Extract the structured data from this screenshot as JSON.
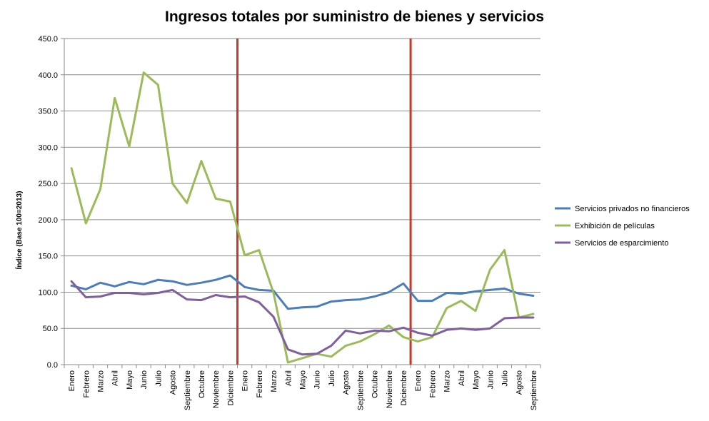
{
  "chart_data": {
    "type": "line",
    "title": "Ingresos totales por suministro de bienes y servicios",
    "xlabel": "",
    "ylabel": "Índice (Base  100=2013)",
    "ylim": [
      0,
      450
    ],
    "yticks": [
      "0.0",
      "50.0",
      "100.0",
      "150.0",
      "200.0",
      "250.0",
      "300.0",
      "350.0",
      "400.0",
      "450.0"
    ],
    "grid": true,
    "legend_position": "right",
    "categories": [
      "Enero",
      "Febrero",
      "Marzo",
      "Abril",
      "Mayo",
      "Junio",
      "Julio",
      "Agosto",
      "Septiembre",
      "Octubre",
      "Noviembre",
      "Diciembre",
      "Enero",
      "Febrero",
      "Marzo",
      "Abril",
      "Mayo",
      "Junio",
      "Julio",
      "Agosto",
      "Septiembre",
      "Octubre",
      "Noviembre",
      "Diciembre",
      "Enero",
      "Febrero",
      "Marzo",
      "Abril",
      "Mayo",
      "Junio",
      "Julio",
      "Agosto",
      "Septiembre"
    ],
    "separators_after_index": [
      11,
      23
    ],
    "separator_color": "#c0392b",
    "series": [
      {
        "name": "Servicios privados no financieros",
        "color": "#4a7ebb",
        "values": [
          109,
          104,
          113,
          108,
          114,
          111,
          117,
          115,
          110,
          113,
          117,
          123,
          107,
          103,
          102,
          77,
          79,
          80,
          87,
          89,
          90,
          94,
          100,
          112,
          88,
          88,
          99,
          98,
          101,
          103,
          105,
          98,
          95
        ]
      },
      {
        "name": "Exhibición de películas",
        "color": "#9bbb59",
        "values": [
          271,
          195,
          242,
          368,
          301,
          403,
          386,
          250,
          223,
          281,
          229,
          225,
          151,
          158,
          99,
          3,
          9,
          15,
          11,
          26,
          32,
          42,
          54,
          38,
          32,
          38,
          78,
          88,
          74,
          131,
          158,
          65,
          70
        ]
      },
      {
        "name": "Servicios de esparcimiento",
        "color": "#7f5f9f",
        "values": [
          115,
          93,
          94,
          99,
          99,
          97,
          99,
          103,
          90,
          89,
          96,
          93,
          94,
          86,
          66,
          21,
          14,
          15,
          26,
          47,
          43,
          47,
          46,
          51,
          44,
          40,
          48,
          50,
          48,
          50,
          64,
          65,
          65
        ]
      }
    ]
  }
}
